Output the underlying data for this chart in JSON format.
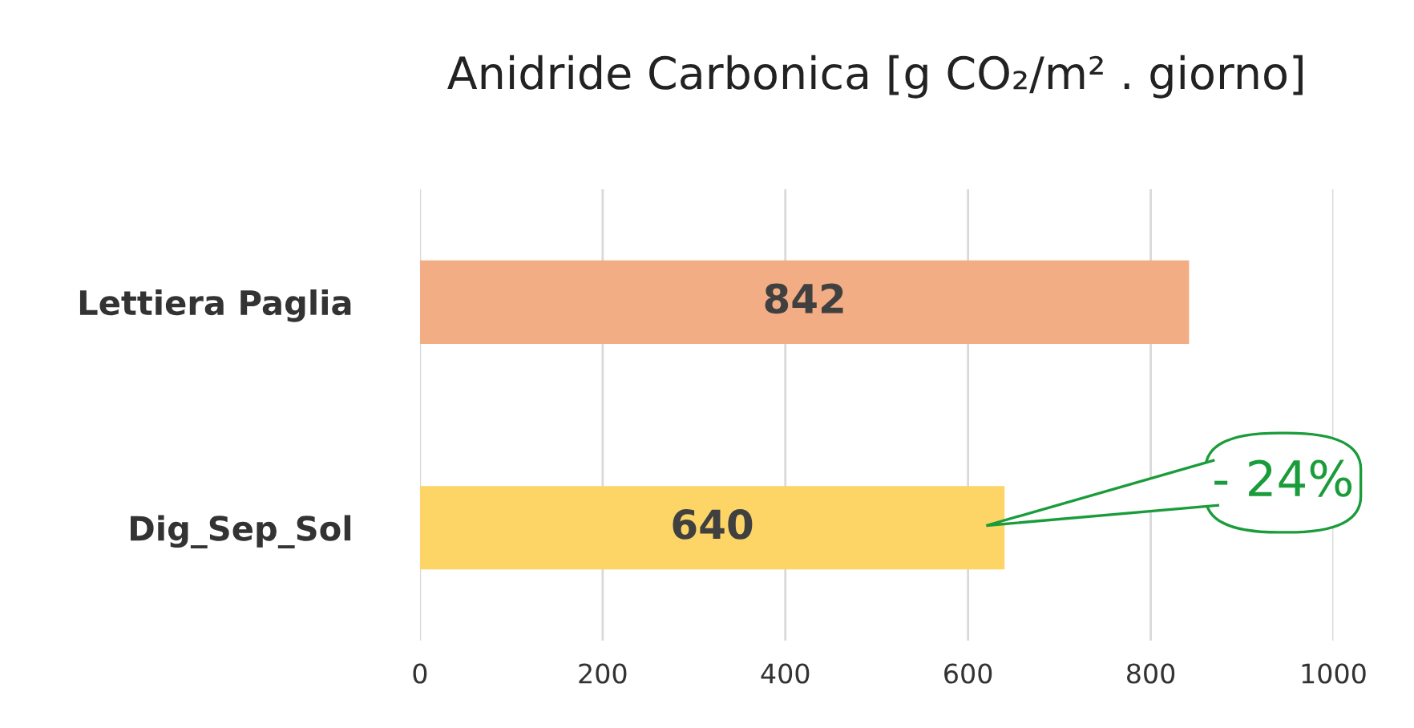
{
  "chart_data": {
    "type": "bar",
    "orientation": "horizontal",
    "title": "Anidride Carbonica [g CO₂/m² . giorno]",
    "categories": [
      "Lettiera Paglia",
      "Dig_Sep_Sol"
    ],
    "values": [
      842,
      640
    ],
    "colors": [
      "#f2ad84",
      "#fdd566"
    ],
    "xlim": [
      0,
      1000
    ],
    "xticks": [
      0,
      200,
      400,
      600,
      800,
      1000
    ],
    "grid": "x",
    "data_labels": true,
    "legend": false,
    "annotations": [
      "- 24%"
    ]
  }
}
